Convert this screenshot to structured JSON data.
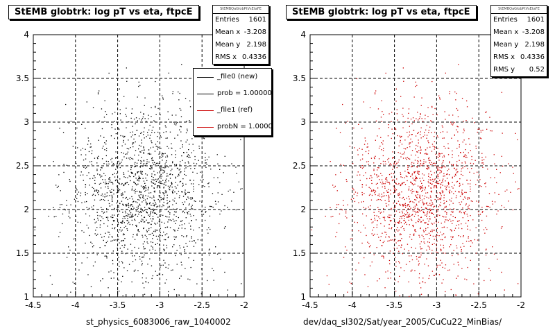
{
  "chart_data": [
    {
      "type": "scatter",
      "title": "StEMB globtrk: log pT vs eta, ftpcE",
      "xlabel": "st_physics_6083006_raw_1040002",
      "ylabel": "",
      "xlim": [
        -4.5,
        -2
      ],
      "ylim": [
        1,
        4
      ],
      "x_ticks": [
        "-4.5",
        "-4",
        "-3.5",
        "-3",
        "-2.5",
        "-2"
      ],
      "y_ticks": [
        "1",
        "1.5",
        "2",
        "2.5",
        "3",
        "3.5",
        "4"
      ],
      "grid": true,
      "marker_color": "#000000",
      "stats": {
        "header": "StEMBQaGlobPtVsEtaFE",
        "rows": [
          {
            "label": "Entries",
            "value": "1601"
          },
          {
            "label": "Mean x",
            "value": "-3.208"
          },
          {
            "label": "Mean y",
            "value": "2.198"
          },
          {
            "label": "RMS x",
            "value": "0.4336"
          }
        ]
      },
      "legend": {
        "placement": "top-right",
        "entries": [
          {
            "label": "_file0 (new)",
            "color": "#000000"
          },
          {
            "label": "prob = 1.000000",
            "color": "#000000"
          },
          {
            "label": "_file1 (ref)",
            "color": "#cc0000"
          },
          {
            "label": "probN = 1.000000",
            "color": "#cc0000"
          }
        ]
      },
      "points": {
        "count": 1601,
        "mean_x": -3.208,
        "mean_y": 2.198,
        "rms_x": 0.4336,
        "rms_y": 0.52
      }
    },
    {
      "type": "scatter",
      "title": "StEMB globtrk: log pT vs eta, ftpcE",
      "xlabel": "dev/daq_sl302/Sat/year_2005/CuCu22_MinBias/",
      "ylabel": "",
      "xlim": [
        -4.5,
        -2
      ],
      "ylim": [
        1,
        4
      ],
      "x_ticks": [
        "-4.5",
        "-4",
        "-3.5",
        "-3",
        "-2.5",
        "-2"
      ],
      "y_ticks": [
        "1",
        "1.5",
        "2",
        "2.5",
        "3",
        "3.5",
        "4"
      ],
      "grid": true,
      "marker_color": "#cc0000",
      "stats": {
        "header": "StEMBQaGlobPtVsEtaFE",
        "rows": [
          {
            "label": "Entries",
            "value": "1601"
          },
          {
            "label": "Mean x",
            "value": "-3.208"
          },
          {
            "label": "Mean y",
            "value": "2.198"
          },
          {
            "label": "RMS x",
            "value": "0.4336"
          },
          {
            "label": "RMS y",
            "value": "0.52"
          }
        ]
      },
      "points": {
        "count": 1601,
        "mean_x": -3.208,
        "mean_y": 2.198,
        "rms_x": 0.4336,
        "rms_y": 0.52
      }
    }
  ]
}
